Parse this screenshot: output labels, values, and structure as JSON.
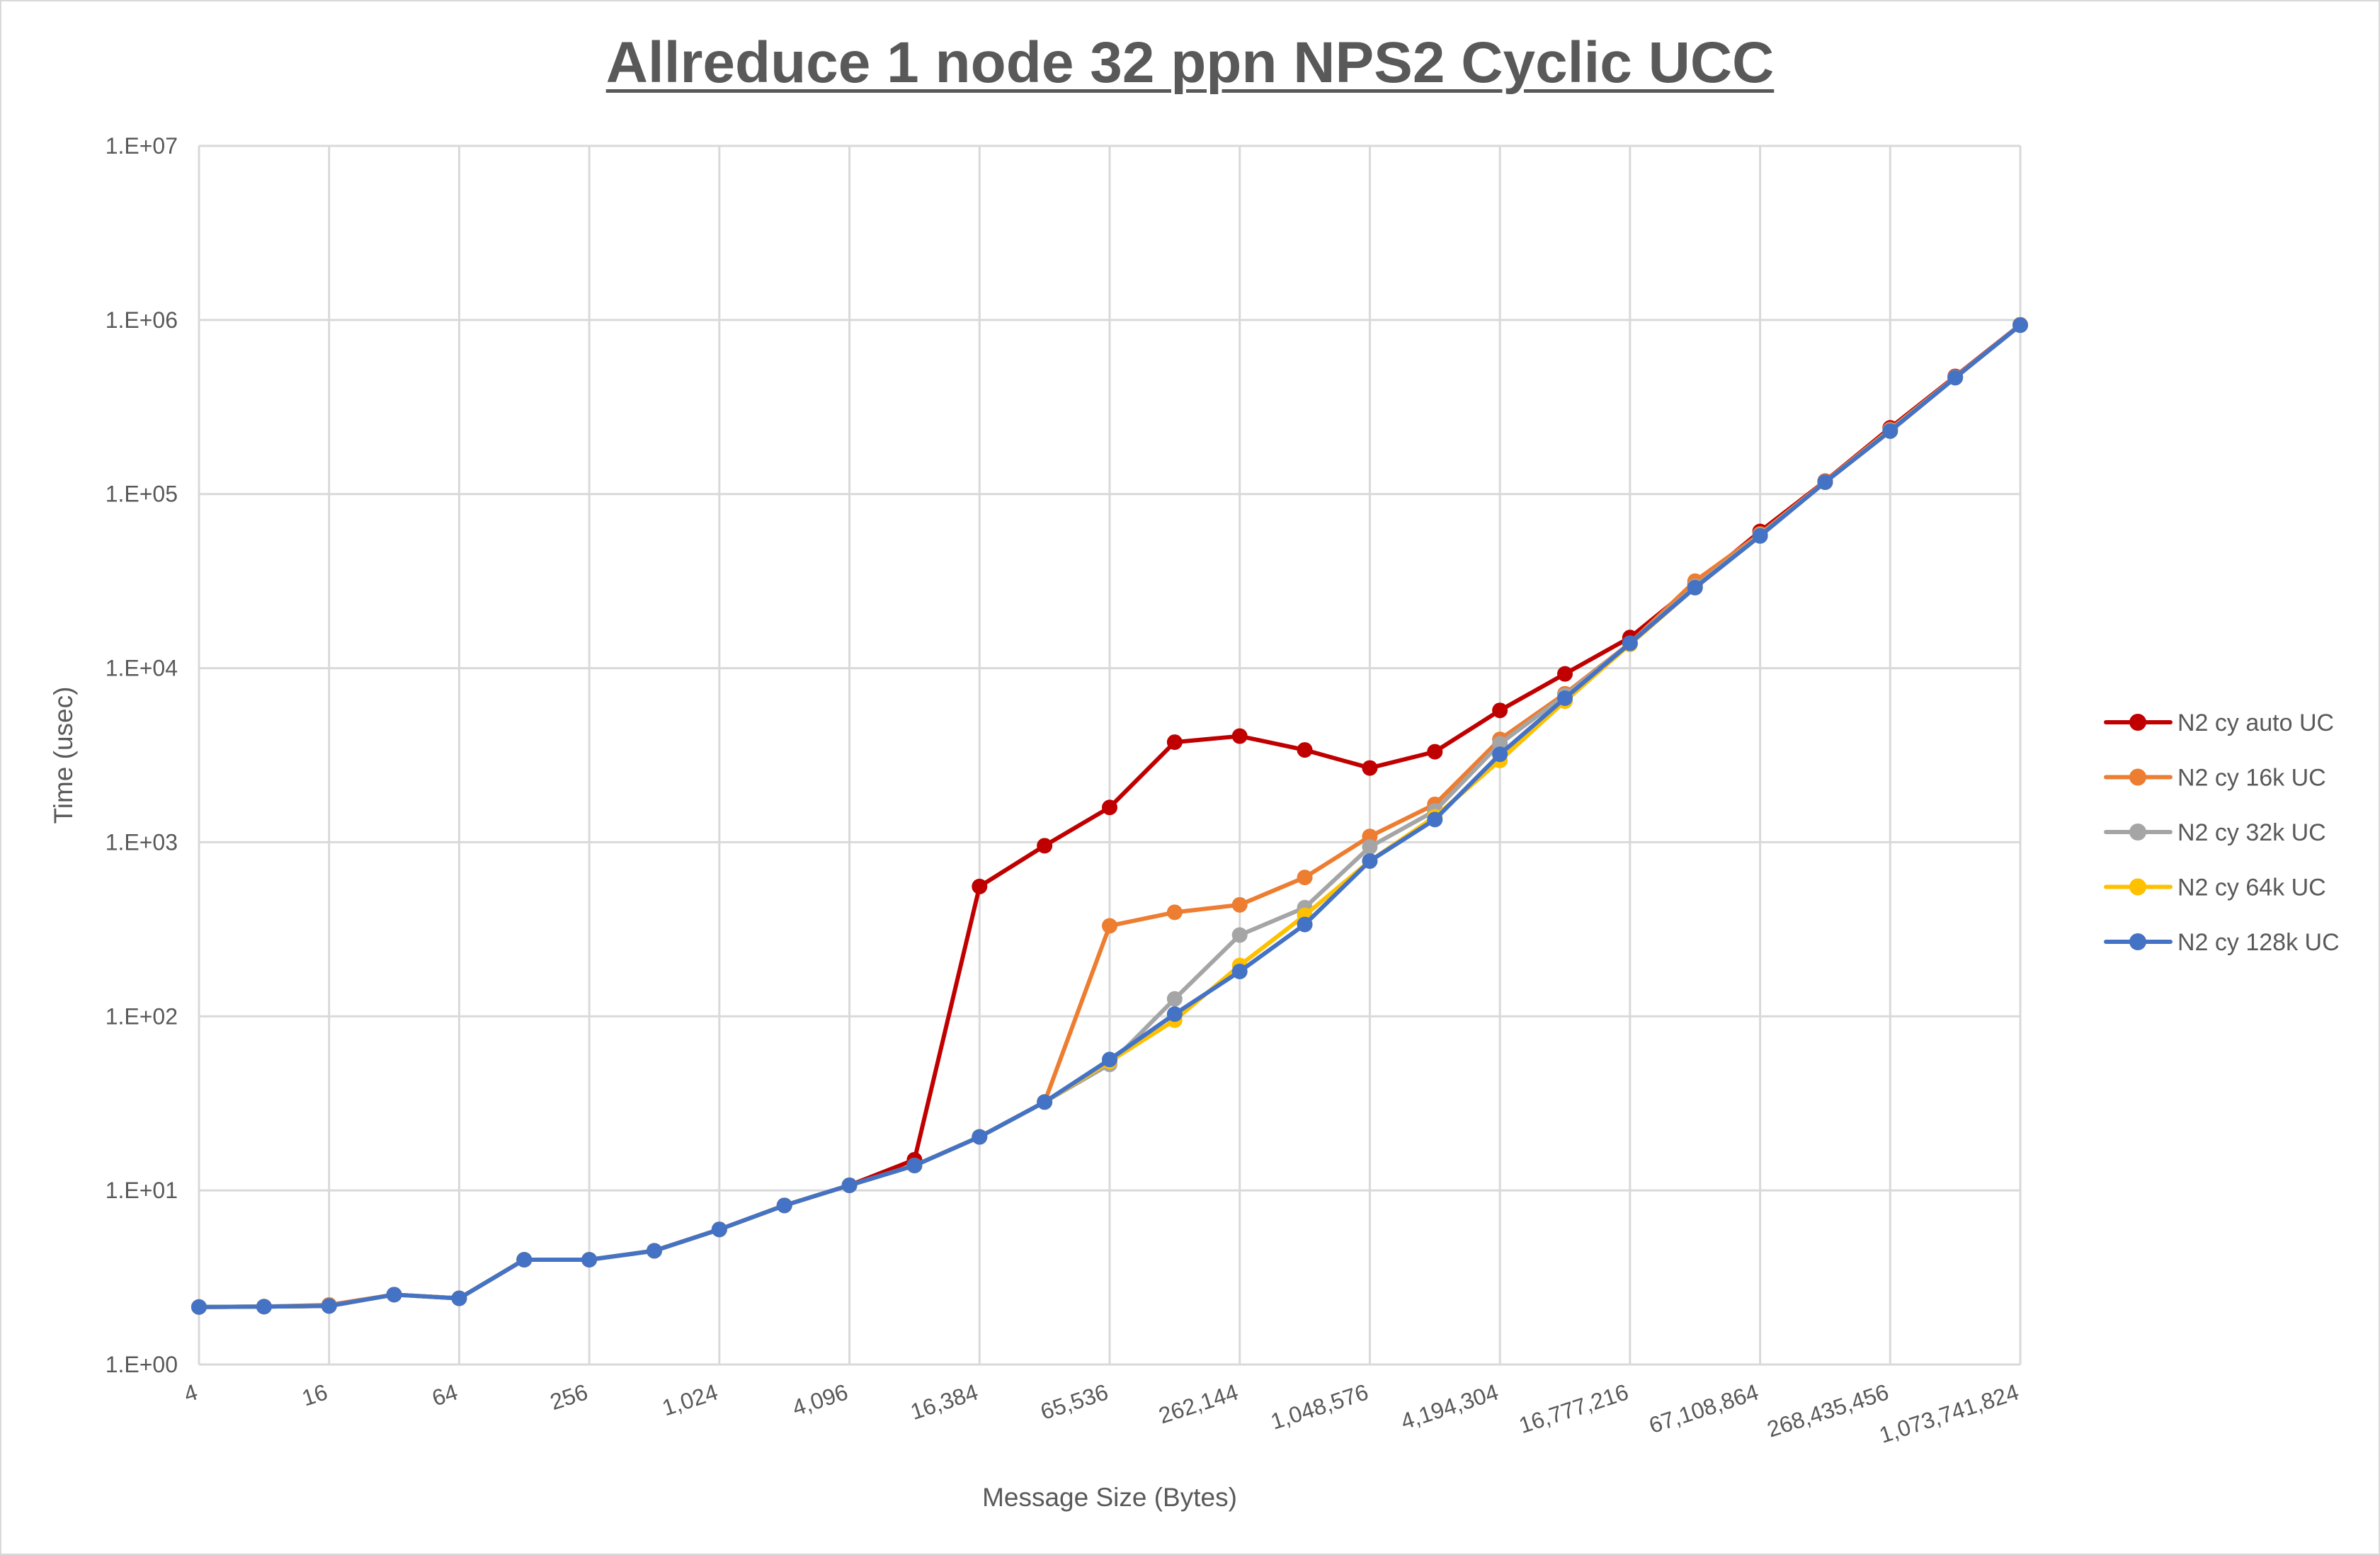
{
  "chart_data": {
    "type": "line",
    "title": "Allreduce 1 node 32 ppn NPS2 Cyclic UCC",
    "xlabel": "Message Size (Bytes)",
    "ylabel": "Time (usec)",
    "y_scale": "log",
    "ylim": [
      1,
      10000000
    ],
    "y_tick_labels": [
      "1.E+00",
      "1.E+01",
      "1.E+02",
      "1.E+03",
      "1.E+04",
      "1.E+05",
      "1.E+06",
      "1.E+07"
    ],
    "x": [
      4,
      8,
      16,
      32,
      64,
      128,
      256,
      512,
      1024,
      2048,
      4096,
      8192,
      16384,
      32768,
      65536,
      131072,
      262144,
      524288,
      1048576,
      2097152,
      4194304,
      8388608,
      16777216,
      33554432,
      67108864,
      134217728,
      268435456,
      536870912,
      1073741824
    ],
    "x_tick_labels": [
      "4",
      "16",
      "64",
      "256",
      "1,024",
      "4,096",
      "16,384",
      "65,536",
      "262,144",
      "1,048,576",
      "4,194,304",
      "16,777,216",
      "67,108,864",
      "268,435,456",
      "1,073,741,824"
    ],
    "grid": true,
    "legend_position": "right",
    "series": [
      {
        "name": "N2 cy auto UC",
        "color": "#c00000",
        "values": [
          2.14,
          2.15,
          2.17,
          2.52,
          2.4,
          4.0,
          4.0,
          4.5,
          5.97,
          8.2,
          10.7,
          15,
          557,
          955,
          1585,
          3757,
          4070,
          3390,
          2670,
          3310,
          5720,
          9270,
          15000,
          30200,
          61000,
          118600,
          240000,
          474000,
          938000
        ]
      },
      {
        "name": "N2 cy 16k UC",
        "color": "#ed7d31",
        "values": [
          2.14,
          2.15,
          2.2,
          2.52,
          2.4,
          4.0,
          4.0,
          4.5,
          5.97,
          8.2,
          10.7,
          13.9,
          20.3,
          32.2,
          331,
          396,
          437,
          628,
          1080,
          1650,
          3900,
          7130,
          13900,
          31600,
          59000,
          118000,
          235000,
          470000,
          935000
        ]
      },
      {
        "name": "N2 cy 32k UC",
        "color": "#a5a5a5",
        "values": [
          2.14,
          2.15,
          2.17,
          2.52,
          2.4,
          4.0,
          4.0,
          4.5,
          5.97,
          8.2,
          10.7,
          13.9,
          20.3,
          32.2,
          53,
          126,
          293,
          421,
          940,
          1515,
          3680,
          6960,
          13900,
          29500,
          58000,
          117000,
          232000,
          468000,
          935000
        ]
      },
      {
        "name": "N2 cy 64k UC",
        "color": "#ffc000",
        "values": [
          2.14,
          2.15,
          2.17,
          2.52,
          2.4,
          4.0,
          4.0,
          4.5,
          5.97,
          8.2,
          10.7,
          13.9,
          20.3,
          32.2,
          55,
          95,
          196,
          380,
          780,
          1400,
          2950,
          6460,
          13700,
          29000,
          57500,
          117000,
          230000,
          466000,
          933000
        ]
      },
      {
        "name": "N2 cy 128k UC",
        "color": "#4472c4",
        "values": [
          2.14,
          2.15,
          2.17,
          2.52,
          2.4,
          4.0,
          4.0,
          4.5,
          5.97,
          8.2,
          10.7,
          13.9,
          20.3,
          32.2,
          56.5,
          103,
          181,
          337,
          780,
          1350,
          3200,
          6720,
          13900,
          29000,
          57500,
          117000,
          230000,
          466000,
          933000
        ]
      }
    ]
  }
}
